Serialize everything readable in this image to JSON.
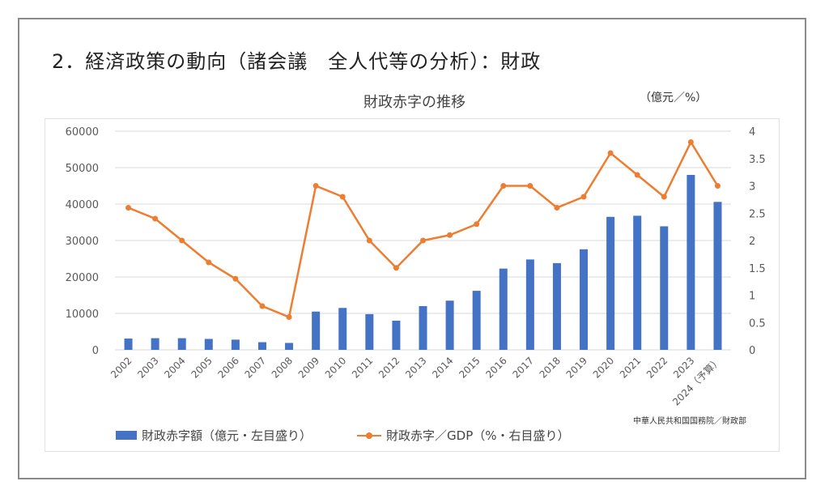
{
  "heading": "2．経済政策の動向（諸会議　全人代等の分析）：財政",
  "unit_note": "（億元／%）",
  "source_note": "中華人民共和国国務院／財政部",
  "colors": {
    "bar": "#4472c4",
    "line": "#ed7d31",
    "grid": "#d9d9d9",
    "axis_text": "#595959"
  },
  "chart_data": {
    "type": "bar",
    "title": "財政赤字の推移",
    "categories": [
      "2002",
      "2003",
      "2004",
      "2005",
      "2006",
      "2007",
      "2008",
      "2009",
      "2010",
      "2011",
      "2012",
      "2013",
      "2014",
      "2015",
      "2016",
      "2017",
      "2018",
      "2019",
      "2020",
      "2021",
      "2022",
      "2023",
      "2024（予算）"
    ],
    "series": [
      {
        "name": "財政赤字額（億元・左目盛り）",
        "type": "bar",
        "axis": "left",
        "values": [
          3100,
          3200,
          3200,
          3000,
          2800,
          2100,
          1900,
          10500,
          11500,
          9800,
          8000,
          12000,
          13500,
          16200,
          22300,
          24800,
          23800,
          27600,
          36500,
          36800,
          33900,
          48000,
          40600
        ]
      },
      {
        "name": "財政赤字／GDP（%・右目盛り）",
        "type": "line",
        "axis": "right",
        "values": [
          2.6,
          2.4,
          2.0,
          1.6,
          1.3,
          0.8,
          0.6,
          3.0,
          2.8,
          2.0,
          1.5,
          2.0,
          2.1,
          2.3,
          3.0,
          3.0,
          2.6,
          2.8,
          3.6,
          3.2,
          2.8,
          3.8,
          3.0
        ]
      }
    ],
    "y_left": {
      "min": 0,
      "max": 60000,
      "ticks": [
        "0",
        "10000",
        "20000",
        "30000",
        "40000",
        "50000",
        "60000"
      ]
    },
    "y_right": {
      "min": 0,
      "max": 4,
      "ticks": [
        "0",
        "0.5",
        "1",
        "1.5",
        "2",
        "2.5",
        "3",
        "3.5",
        "4"
      ]
    },
    "grid": true,
    "legend_position": "bottom"
  }
}
